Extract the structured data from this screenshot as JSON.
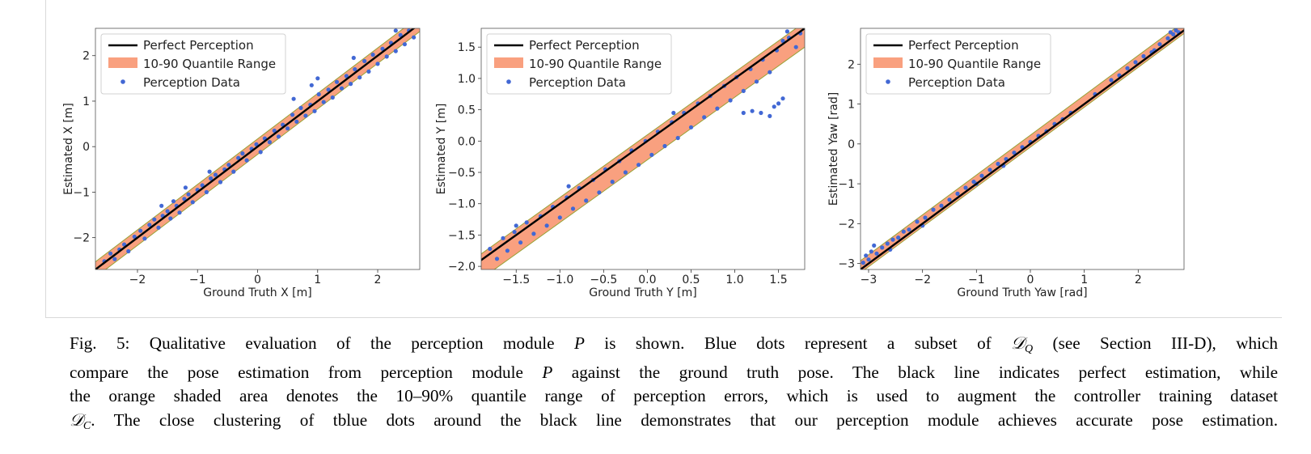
{
  "chart_data": [
    {
      "type": "scatter",
      "xlabel": "Ground Truth X [m]",
      "ylabel": "Estimated X [m]",
      "xlim": [
        -2.7,
        2.7
      ],
      "ylim": [
        -2.7,
        2.6
      ],
      "xticks": [
        -2,
        -1,
        0,
        1,
        2
      ],
      "xtick_labels": [
        "−2",
        "−1",
        "0",
        "1",
        "2"
      ],
      "yticks": [
        -2,
        -1,
        0,
        1,
        2
      ],
      "ytick_labels": [
        "−2",
        "−1",
        "0",
        "1",
        "2"
      ],
      "legend": {
        "placement": "top-left",
        "entries": [
          "Perfect Perception",
          "10-90 Quantile Range",
          "Perception Data"
        ]
      },
      "quantile_band": {
        "lower_offset": -0.17,
        "upper_offset": 0.17
      },
      "points": [
        [
          -2.55,
          -2.52
        ],
        [
          -2.45,
          -2.35
        ],
        [
          -2.38,
          -2.47
        ],
        [
          -2.3,
          -2.26
        ],
        [
          -2.22,
          -2.15
        ],
        [
          -2.15,
          -2.3
        ],
        [
          -2.05,
          -1.98
        ],
        [
          -1.95,
          -1.85
        ],
        [
          -1.88,
          -2.02
        ],
        [
          -1.8,
          -1.72
        ],
        [
          -1.72,
          -1.6
        ],
        [
          -1.65,
          -1.78
        ],
        [
          -1.58,
          -1.52
        ],
        [
          -1.5,
          -1.42
        ],
        [
          -1.45,
          -1.58
        ],
        [
          -1.4,
          -1.2
        ],
        [
          -1.35,
          -1.3
        ],
        [
          -1.3,
          -1.45
        ],
        [
          -1.22,
          -1.15
        ],
        [
          -1.15,
          -1.05
        ],
        [
          -1.08,
          -1.22
        ],
        [
          -1.0,
          -0.95
        ],
        [
          -0.92,
          -0.85
        ],
        [
          -0.85,
          -1.0
        ],
        [
          -0.78,
          -0.7
        ],
        [
          -0.7,
          -0.62
        ],
        [
          -0.62,
          -0.78
        ],
        [
          -0.55,
          -0.5
        ],
        [
          -0.48,
          -0.4
        ],
        [
          -0.4,
          -0.55
        ],
        [
          -0.32,
          -0.25
        ],
        [
          -0.25,
          -0.15
        ],
        [
          -0.18,
          -0.3
        ],
        [
          -0.1,
          -0.05
        ],
        [
          -0.02,
          0.05
        ],
        [
          0.05,
          -0.12
        ],
        [
          0.12,
          0.18
        ],
        [
          0.2,
          0.1
        ],
        [
          0.28,
          0.35
        ],
        [
          0.35,
          0.22
        ],
        [
          0.42,
          0.48
        ],
        [
          0.5,
          0.4
        ],
        [
          0.58,
          0.7
        ],
        [
          0.65,
          0.55
        ],
        [
          0.72,
          0.85
        ],
        [
          0.8,
          0.68
        ],
        [
          0.88,
          0.92
        ],
        [
          0.95,
          0.78
        ],
        [
          1.02,
          1.15
        ],
        [
          1.1,
          0.98
        ],
        [
          1.18,
          1.25
        ],
        [
          1.25,
          1.08
        ],
        [
          1.32,
          1.42
        ],
        [
          1.4,
          1.28
        ],
        [
          1.48,
          1.55
        ],
        [
          1.55,
          1.38
        ],
        [
          1.62,
          1.7
        ],
        [
          1.7,
          1.52
        ],
        [
          1.78,
          1.88
        ],
        [
          1.85,
          1.65
        ],
        [
          1.92,
          2.02
        ],
        [
          2.0,
          1.82
        ],
        [
          2.08,
          2.15
        ],
        [
          2.15,
          1.98
        ],
        [
          2.22,
          2.28
        ],
        [
          2.3,
          2.1
        ],
        [
          2.38,
          2.45
        ],
        [
          2.45,
          2.25
        ],
        [
          2.52,
          2.55
        ],
        [
          2.6,
          2.4
        ],
        [
          0.6,
          1.05
        ],
        [
          0.9,
          1.35
        ],
        [
          1.0,
          1.5
        ],
        [
          -0.8,
          -0.55
        ],
        [
          -1.2,
          -0.9
        ],
        [
          1.6,
          1.95
        ],
        [
          2.3,
          2.55
        ],
        [
          -1.6,
          -1.3
        ]
      ]
    },
    {
      "type": "scatter",
      "xlabel": "Ground Truth Y [m]",
      "ylabel": "Estimated Y [m]",
      "xlim": [
        -1.9,
        1.8
      ],
      "ylim": [
        -2.05,
        1.8
      ],
      "xticks": [
        -1.5,
        -1.0,
        -0.5,
        0.0,
        0.5,
        1.0,
        1.5
      ],
      "xtick_labels": [
        "−1.5",
        "−1.0",
        "−0.5",
        "0.0",
        "0.5",
        "1.0",
        "1.5"
      ],
      "yticks": [
        -2.0,
        -1.5,
        -1.0,
        -0.5,
        0.0,
        0.5,
        1.0,
        1.5
      ],
      "ytick_labels": [
        "−2.0",
        "−1.5",
        "−1.0",
        "−0.5",
        "0.0",
        "0.5",
        "1.0",
        "1.5"
      ],
      "legend": {
        "placement": "top-left",
        "entries": [
          "Perfect Perception",
          "10-90 Quantile Range",
          "Perception Data"
        ]
      },
      "quantile_band": {
        "lower_offset": -0.3,
        "upper_offset": 0.1
      },
      "points": [
        [
          -1.8,
          -1.72
        ],
        [
          -1.72,
          -1.88
        ],
        [
          -1.65,
          -1.55
        ],
        [
          -1.6,
          -1.75
        ],
        [
          -1.52,
          -1.45
        ],
        [
          -1.45,
          -1.62
        ],
        [
          -1.38,
          -1.3
        ],
        [
          -1.3,
          -1.48
        ],
        [
          -1.22,
          -1.2
        ],
        [
          -1.15,
          -1.35
        ],
        [
          -1.08,
          -1.05
        ],
        [
          -1.0,
          -1.22
        ],
        [
          -0.92,
          -0.9
        ],
        [
          -0.85,
          -1.08
        ],
        [
          -0.78,
          -0.75
        ],
        [
          -0.7,
          -0.95
        ],
        [
          -0.62,
          -0.62
        ],
        [
          -0.55,
          -0.82
        ],
        [
          -0.48,
          -0.45
        ],
        [
          -0.4,
          -0.65
        ],
        [
          -0.32,
          -0.32
        ],
        [
          -0.25,
          -0.5
        ],
        [
          -0.18,
          -0.15
        ],
        [
          -0.1,
          -0.38
        ],
        [
          -0.02,
          0.0
        ],
        [
          0.05,
          -0.22
        ],
        [
          0.12,
          0.15
        ],
        [
          0.2,
          -0.08
        ],
        [
          0.28,
          0.3
        ],
        [
          0.35,
          0.05
        ],
        [
          0.42,
          0.45
        ],
        [
          0.5,
          0.22
        ],
        [
          0.58,
          0.6
        ],
        [
          0.65,
          0.38
        ],
        [
          0.72,
          0.72
        ],
        [
          0.8,
          0.52
        ],
        [
          0.88,
          0.88
        ],
        [
          0.95,
          0.65
        ],
        [
          1.02,
          1.02
        ],
        [
          1.1,
          0.8
        ],
        [
          1.18,
          1.15
        ],
        [
          1.25,
          0.95
        ],
        [
          1.32,
          1.3
        ],
        [
          1.4,
          1.1
        ],
        [
          1.48,
          1.45
        ],
        [
          1.55,
          1.6
        ],
        [
          1.62,
          1.65
        ],
        [
          1.7,
          1.5
        ],
        [
          1.75,
          1.72
        ],
        [
          1.6,
          1.75
        ],
        [
          1.2,
          0.48
        ],
        [
          1.3,
          0.45
        ],
        [
          1.4,
          0.4
        ],
        [
          1.45,
          0.55
        ],
        [
          1.5,
          0.6
        ],
        [
          1.55,
          0.68
        ],
        [
          1.1,
          0.45
        ],
        [
          -1.5,
          -1.35
        ],
        [
          -0.9,
          -0.72
        ],
        [
          0.3,
          0.45
        ]
      ]
    },
    {
      "type": "scatter",
      "xlabel": "Ground Truth Yaw [rad]",
      "ylabel": "Estimated Yaw [rad]",
      "xlim": [
        -3.15,
        2.85
      ],
      "ylim": [
        -3.15,
        2.9
      ],
      "xticks": [
        -3,
        -2,
        -1,
        0,
        1,
        2
      ],
      "xtick_labels": [
        "−3",
        "−2",
        "−1",
        "0",
        "1",
        "2"
      ],
      "yticks": [
        -3,
        -2,
        -1,
        0,
        1,
        2
      ],
      "ytick_labels": [
        "−3",
        "−2",
        "−1",
        "0",
        "1",
        "2"
      ],
      "legend": {
        "placement": "top-left",
        "entries": [
          "Perfect Perception",
          "10-90 Quantile Range",
          "Perception Data"
        ]
      },
      "quantile_band": {
        "lower_offset": -0.08,
        "upper_offset": 0.22
      },
      "points": [
        [
          -3.1,
          -2.98
        ],
        [
          -3.05,
          -2.8
        ],
        [
          -3.0,
          -2.9
        ],
        [
          -2.95,
          -2.7
        ],
        [
          -2.9,
          -2.55
        ],
        [
          -2.85,
          -2.75
        ],
        [
          -2.75,
          -2.6
        ],
        [
          -2.65,
          -2.5
        ],
        [
          -2.55,
          -2.4
        ],
        [
          -2.45,
          -2.35
        ],
        [
          -2.35,
          -2.2
        ],
        [
          -2.25,
          -2.15
        ],
        [
          -2.1,
          -1.95
        ],
        [
          -1.95,
          -1.85
        ],
        [
          -1.8,
          -1.65
        ],
        [
          -1.65,
          -1.55
        ],
        [
          -1.5,
          -1.4
        ],
        [
          -1.35,
          -1.25
        ],
        [
          -1.2,
          -1.1
        ],
        [
          -1.05,
          -0.95
        ],
        [
          -0.9,
          -0.8
        ],
        [
          -0.75,
          -0.65
        ],
        [
          -0.6,
          -0.5
        ],
        [
          -0.45,
          -0.38
        ],
        [
          -0.3,
          -0.22
        ],
        [
          -0.15,
          -0.08
        ],
        [
          0.0,
          0.05
        ],
        [
          0.15,
          0.2
        ],
        [
          0.3,
          0.32
        ],
        [
          0.45,
          0.5
        ],
        [
          0.6,
          0.62
        ],
        [
          0.75,
          0.78
        ],
        [
          1.5,
          1.6
        ],
        [
          1.65,
          1.72
        ],
        [
          1.8,
          1.9
        ],
        [
          1.95,
          2.05
        ],
        [
          2.1,
          2.2
        ],
        [
          2.25,
          2.3
        ],
        [
          2.4,
          2.5
        ],
        [
          2.55,
          2.65
        ],
        [
          2.65,
          2.75
        ],
        [
          2.7,
          2.85
        ],
        [
          2.75,
          2.8
        ],
        [
          2.6,
          2.8
        ],
        [
          -2.0,
          -2.05
        ],
        [
          -1.0,
          -1.0
        ],
        [
          -2.6,
          -2.65
        ],
        [
          1.2,
          1.25
        ],
        [
          -0.5,
          -0.55
        ],
        [
          2.3,
          2.35
        ]
      ]
    }
  ],
  "caption": {
    "lines": [
      {
        "a": "Fig. 5: Qualitative evaluation of the perception module ",
        "m1": "P",
        "b": " is shown. Blue dots represent a subset of ",
        "m2": "𝒟",
        "m2sub": "Q",
        "c": " (see Section III-D), which"
      },
      {
        "a": "compare the pose estimation from perception module ",
        "m1": "P",
        "b": " against the ground truth pose. The black line indicates perfect estimation, while"
      },
      {
        "a": "the orange shaded area denotes the 10–90% quantile range of perception errors, which is used to augment the controller training dataset"
      },
      {
        "m2": "𝒟",
        "m2sub": "C",
        "c": ". The close clustering of tblue dots around the black line demonstrates that our perception module achieves accurate pose estimation."
      }
    ]
  },
  "colors": {
    "band_fill": "#f9a07f",
    "band_edge": "#9aa236",
    "points": "#4268d4",
    "line": "#000000",
    "axes": "#555555"
  }
}
